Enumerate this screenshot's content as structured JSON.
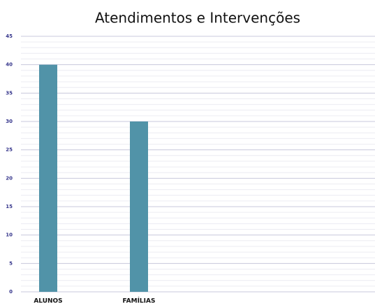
{
  "chart_data": {
    "type": "bar",
    "title": "Atendimentos e Intervenções",
    "categories": [
      "ALUNOS",
      "FAMÍLIAS"
    ],
    "values": [
      40,
      30
    ],
    "color": "#5193a8",
    "ylim": [
      0,
      45
    ],
    "yticks": [
      0,
      5,
      10,
      15,
      20,
      25,
      30,
      35,
      40,
      45
    ],
    "grid": true
  }
}
